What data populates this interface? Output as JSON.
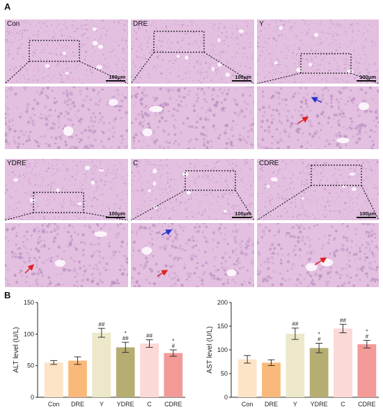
{
  "panels": {
    "a_letter": "A",
    "b_letter": "B"
  },
  "micrographs": {
    "groups": [
      "Con",
      "DRE",
      "Y",
      "YDRE",
      "C",
      "CDRE"
    ],
    "scale_bar": "100μm",
    "arrows": [
      {
        "group": "Y",
        "colors": [
          "#2233cc",
          "#dd2222"
        ]
      },
      {
        "group": "YDRE",
        "colors": [
          "#dd2222"
        ]
      },
      {
        "group": "C",
        "colors": [
          "#2233cc",
          "#dd2222"
        ]
      },
      {
        "group": "CDRE",
        "colors": [
          "#dd2222"
        ]
      }
    ],
    "tissue_color": "#e3bfe0",
    "zoom_box_style": "dotted black"
  },
  "chart_data": [
    {
      "type": "bar",
      "categories": [
        "Con",
        "DRE",
        "Y",
        "YDRE",
        "C",
        "CDRE"
      ],
      "values": [
        55,
        58,
        102,
        79,
        85,
        70
      ],
      "errors": [
        3,
        6,
        7,
        8,
        6,
        5
      ],
      "annotations": [
        "",
        "",
        "##",
        "*\n##",
        "##",
        "*\n#"
      ],
      "colors": [
        "#fde4c6",
        "#f9b97a",
        "#ece8c9",
        "#b6ad72",
        "#fbd9d7",
        "#f29a98"
      ],
      "ylabel": "ALT level (U/L)",
      "ylim": [
        0,
        150
      ],
      "yticks": [
        0,
        50,
        100,
        150
      ]
    },
    {
      "type": "bar",
      "categories": [
        "Con",
        "DRE",
        "Y",
        "YDRE",
        "C",
        "CDRE"
      ],
      "values": [
        80,
        73,
        134,
        104,
        145,
        112
      ],
      "errors": [
        8,
        6,
        12,
        10,
        9,
        8
      ],
      "annotations": [
        "",
        "",
        "##",
        "*\n#",
        "##",
        "*\n#"
      ],
      "colors": [
        "#fde4c6",
        "#f9b97a",
        "#ece8c9",
        "#b6ad72",
        "#fbd9d7",
        "#f29a98"
      ],
      "ylabel": "AST level (U/L)",
      "ylim": [
        0,
        200
      ],
      "yticks": [
        0,
        50,
        100,
        150,
        200
      ]
    }
  ]
}
